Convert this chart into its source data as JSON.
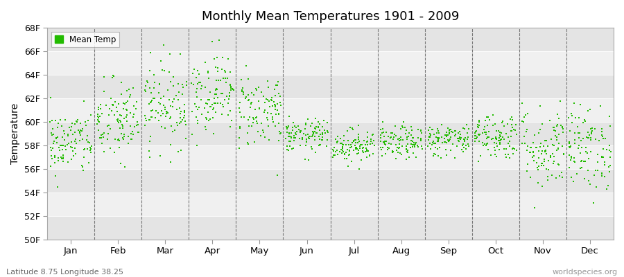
{
  "title": "Monthly Mean Temperatures 1901 - 2009",
  "ylabel": "Temperature",
  "xlabel_labels": [
    "Jan",
    "Feb",
    "Mar",
    "Apr",
    "May",
    "Jun",
    "Jul",
    "Aug",
    "Sep",
    "Oct",
    "Nov",
    "Dec"
  ],
  "ylim": [
    50,
    68
  ],
  "ytick_labels": [
    "50F",
    "52F",
    "54F",
    "56F",
    "58F",
    "60F",
    "62F",
    "64F",
    "66F",
    "68F"
  ],
  "ytick_values": [
    50,
    52,
    54,
    56,
    58,
    60,
    62,
    64,
    66,
    68
  ],
  "dot_color": "#22bb00",
  "background_color": "#ffffff",
  "band_color_dark": "#e4e4e4",
  "band_color_light": "#f0f0f0",
  "legend_label": "Mean Temp",
  "subtitle": "Latitude 8.75 Longitude 38.25",
  "watermark": "worldspecies.org",
  "n_years": 109,
  "month_means": [
    58.2,
    60.0,
    61.5,
    62.5,
    61.0,
    58.8,
    58.0,
    58.2,
    58.5,
    58.8,
    57.8,
    57.8
  ],
  "month_stds": [
    1.4,
    1.8,
    1.8,
    1.7,
    1.6,
    0.7,
    0.7,
    0.7,
    0.7,
    1.0,
    1.8,
    1.8
  ],
  "random_seed": 42,
  "vline_color": "#777777",
  "figsize": [
    9.0,
    4.0
  ],
  "dpi": 100
}
